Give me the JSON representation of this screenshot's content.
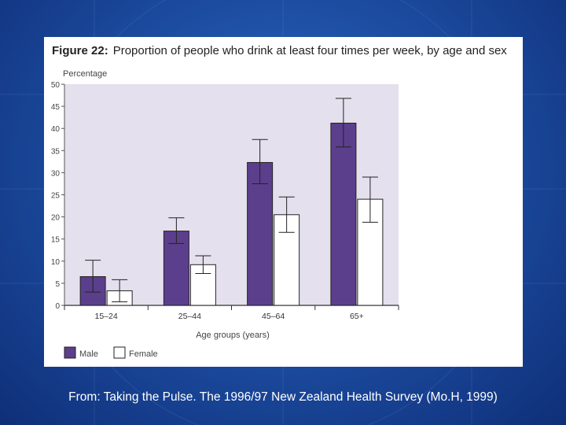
{
  "caption": "From: Taking the Pulse. The 1996/97 New Zealand Health Survey (Mo.H, 1999)",
  "colors": {
    "male": "#5b3f8c",
    "female": "#ffffff",
    "plot_background": "#e4e0ee",
    "slide_background": "#1d4ea3"
  },
  "chart_data": {
    "type": "bar",
    "title_prefix": "Figure 22",
    "title": "Proportion of people who drink at least four times per week, by age and sex",
    "ylabel": "Percentage",
    "xlabel": "Age groups (years)",
    "ylim": [
      0,
      50
    ],
    "yticks": [
      0,
      5,
      10,
      15,
      20,
      25,
      30,
      35,
      40,
      45,
      50
    ],
    "categories": [
      "15–24",
      "25–44",
      "45–64",
      "65+"
    ],
    "legend_position": "bottom-left",
    "grid": false,
    "series": [
      {
        "name": "Male",
        "values": [
          6.5,
          16.8,
          32.3,
          41.2
        ],
        "error_low": [
          3.0,
          14.0,
          27.5,
          35.8
        ],
        "error_high": [
          10.2,
          19.8,
          37.5,
          46.8
        ]
      },
      {
        "name": "Female",
        "values": [
          3.3,
          9.2,
          20.5,
          24.0
        ],
        "error_low": [
          0.8,
          7.2,
          16.5,
          18.8
        ],
        "error_high": [
          5.8,
          11.2,
          24.5,
          29.0
        ]
      }
    ]
  }
}
